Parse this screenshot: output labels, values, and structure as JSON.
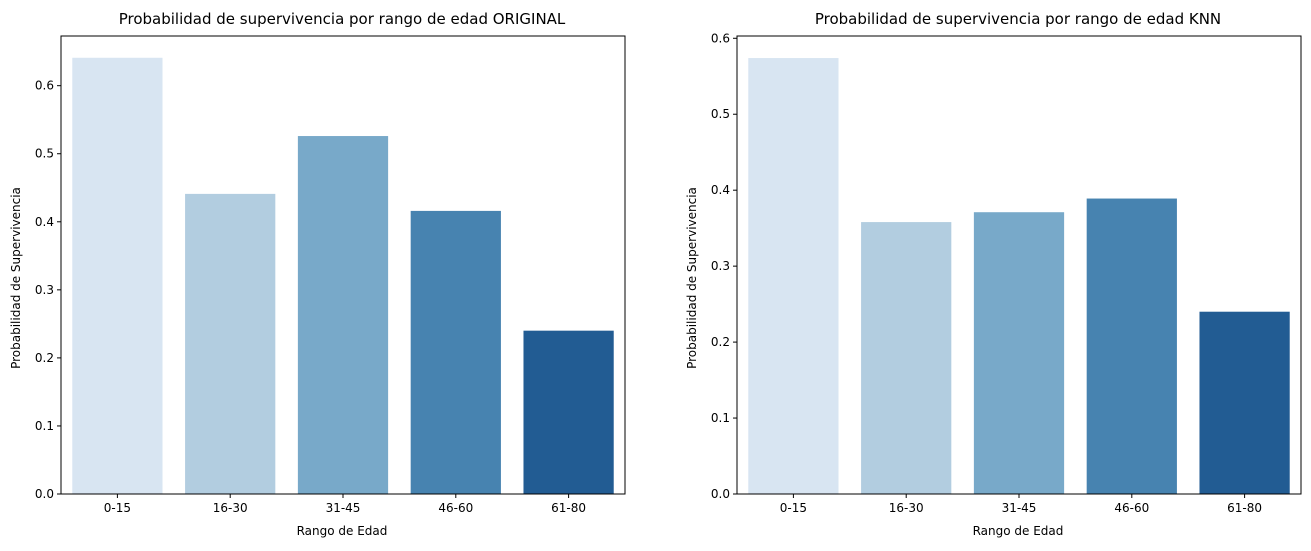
{
  "chart_data": [
    {
      "type": "bar",
      "title": "Probabilidad de supervivencia por rango de edad ORIGINAL",
      "xlabel": "Rango de Edad",
      "ylabel": "Probabilidad de Supervivencia",
      "categories": [
        "0-15",
        "16-30",
        "31-45",
        "46-60",
        "61-80"
      ],
      "values": [
        0.641,
        0.441,
        0.526,
        0.416,
        0.24
      ],
      "ylim": [
        0,
        0.673
      ],
      "yticks": [
        "0.0",
        "0.1",
        "0.2",
        "0.3",
        "0.4",
        "0.5",
        "0.6"
      ],
      "ytick_values": [
        0,
        0.1,
        0.2,
        0.3,
        0.4,
        0.5,
        0.6
      ],
      "colors": [
        "#d8e5f2",
        "#b2cde0",
        "#78a9c9",
        "#4783b0",
        "#225c93"
      ],
      "grid": false,
      "legend": "none"
    },
    {
      "type": "bar",
      "title": "Probabilidad de supervivencia por rango de edad KNN",
      "xlabel": "Rango de Edad",
      "ylabel": "Probabilidad de Supervivencia",
      "categories": [
        "0-15",
        "16-30",
        "31-45",
        "46-60",
        "61-80"
      ],
      "values": [
        0.574,
        0.358,
        0.371,
        0.389,
        0.24
      ],
      "ylim": [
        0,
        0.603
      ],
      "yticks": [
        "0.0",
        "0.1",
        "0.2",
        "0.3",
        "0.4",
        "0.5",
        "0.6"
      ],
      "ytick_values": [
        0,
        0.1,
        0.2,
        0.3,
        0.4,
        0.5,
        0.6
      ],
      "colors": [
        "#d8e5f2",
        "#b2cde0",
        "#78a9c9",
        "#4783b0",
        "#225c93"
      ],
      "grid": false,
      "legend": "none"
    }
  ]
}
